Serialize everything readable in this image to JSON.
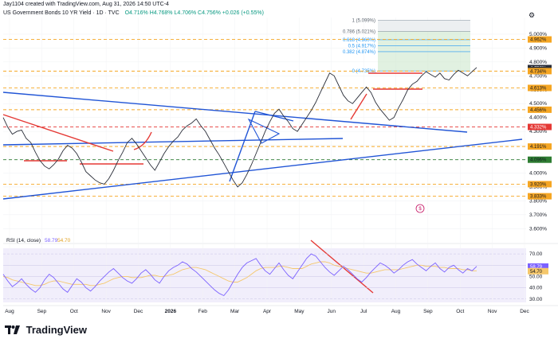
{
  "header": {
    "created_by": "Jay1104 created with TradingView.com, Aug 31, 2026 14:50 UTC-4",
    "symbol_line": "US Government Bonds 10 YR Yield · 1D · TVC",
    "ohlc": "O4.716%  H4.768%  L4.706%  C4.756%  +0.026 (+0.55%)"
  },
  "footer": {
    "brand": "TradingView",
    "brand_icon": "tradingview-logo-icon",
    "currency_icon": "currency-icon"
  },
  "colors": {
    "price_line": "#2a2e39",
    "trendline_blue": "#2155d6",
    "red": "#e53935",
    "orange_dash": "#f5a623",
    "green_dash": "#2e7d32",
    "rsi_line": "#7b61ff",
    "rsi_ma": "#f5c76b",
    "fib_green": "#c8e6c9",
    "fib_blue": "#2196f3"
  },
  "chart_data": [
    {
      "type": "line",
      "title": "US Government Bonds 10 YR Yield",
      "x_tick_labels": [
        "Aug",
        "Sep",
        "Oct",
        "Nov",
        "Dec",
        "2026",
        "Feb",
        "Mar",
        "Apr",
        "May",
        "Jun",
        "Jul",
        "Aug",
        "Sep",
        "Oct",
        "Nov",
        "Dec"
      ],
      "y_tick_labels": [
        "5.000%",
        "4.900%",
        "4.800%",
        "4.700%",
        "4.600%",
        "4.500%",
        "4.400%",
        "4.300%",
        "4.200%",
        "4.100%",
        "4.000%",
        "3.900%",
        "3.800%",
        "3.700%",
        "3.600%"
      ],
      "ylim": [
        3.55,
        5.12
      ],
      "series": [
        {
          "values": [
            4.4,
            4.33,
            4.28,
            4.3,
            4.31,
            4.25,
            4.22,
            4.15,
            4.09,
            4.05,
            4.03,
            4.06,
            4.1,
            4.16,
            4.2,
            4.18,
            4.14,
            4.08,
            4.01,
            3.98,
            3.95,
            3.93,
            3.92,
            3.96,
            4.02,
            4.09,
            4.15,
            4.22,
            4.25,
            4.21,
            4.16,
            4.11,
            4.06,
            4.02,
            4.08,
            4.14,
            4.19,
            4.23,
            4.26,
            4.31,
            4.34,
            4.36,
            4.39,
            4.34,
            4.3,
            4.24,
            4.18,
            4.13,
            4.07,
            4.01,
            3.95,
            3.9,
            3.93,
            3.99,
            4.06,
            4.14,
            4.22,
            4.3,
            4.37,
            4.43,
            4.46,
            4.41,
            4.37,
            4.32,
            4.3,
            4.35,
            4.4,
            4.45,
            4.51,
            4.58,
            4.65,
            4.72,
            4.7,
            4.63,
            4.56,
            4.52,
            4.5,
            4.54,
            4.58,
            4.62,
            4.58,
            4.51,
            4.46,
            4.42,
            4.38,
            4.4,
            4.47,
            4.53,
            4.6,
            4.64,
            4.66,
            4.7,
            4.73,
            4.71,
            4.69,
            4.72,
            4.68,
            4.67,
            4.71,
            4.74,
            4.72,
            4.7,
            4.73,
            4.76
          ]
        }
      ],
      "price_labels": [
        "4.962%",
        "4.756%",
        "02:39:04",
        "4.734%",
        "4.613%",
        "4.456%",
        "4.332%",
        "4.191%",
        "4.096%",
        "3.920%",
        "3.833%"
      ],
      "price_colors": [
        "#f5a623",
        "#2a2e39",
        "#2a2e39",
        "#f5a623",
        "#f5a623",
        "#f5a623",
        "#e53935",
        "#f5a623",
        "#2e7d32",
        "#f5a623",
        "#f5a623"
      ],
      "fib_levels": [
        {
          "label": "1 (5.099%)",
          "value": 5.099
        },
        {
          "label": "0.786 (5.021%)",
          "value": 5.021
        },
        {
          "label": "0.618 (4.960%)",
          "value": 4.96
        },
        {
          "label": "0.5 (4.917%)",
          "value": 4.917
        },
        {
          "label": "0.382 (4.874%)",
          "value": 4.874
        },
        {
          "label": "0 (4.735%)",
          "value": 4.735
        }
      ],
      "horizontal_levels": [
        {
          "value": 4.962,
          "style": "orange-dash"
        },
        {
          "value": 4.734,
          "style": "orange-dash"
        },
        {
          "value": 4.613,
          "style": "orange-dash"
        },
        {
          "value": 4.456,
          "style": "orange-dash"
        },
        {
          "value": 4.332,
          "style": "red-dash"
        },
        {
          "value": 4.191,
          "style": "orange-dash"
        },
        {
          "value": 4.096,
          "style": "green-dash"
        },
        {
          "value": 3.92,
          "style": "orange-dash"
        },
        {
          "value": 3.833,
          "style": "orange-dash"
        }
      ],
      "grid": true
    },
    {
      "type": "line",
      "title": "RSI (14, close)",
      "header_values": [
        "58.79",
        "54.70"
      ],
      "y_tick_labels": [
        "70.00",
        "60.00",
        "50.00",
        "40.00",
        "30.00"
      ],
      "ylim": [
        27,
        75
      ],
      "price_labels": [
        "58.79",
        "54.70"
      ],
      "series": [
        {
          "values": [
            52,
            46,
            41,
            44,
            48,
            43,
            39,
            36,
            40,
            47,
            52,
            49,
            44,
            39,
            36,
            42,
            48,
            45,
            40,
            37,
            41,
            46,
            50,
            54,
            57,
            53,
            49,
            46,
            44,
            48,
            53,
            56,
            52,
            47,
            44,
            50,
            55,
            58,
            60,
            63,
            61,
            57,
            54,
            50,
            46,
            42,
            38,
            35,
            33,
            38,
            45,
            52,
            58,
            62,
            64,
            66,
            60,
            55,
            52,
            57,
            62,
            56,
            51,
            48,
            54,
            60,
            66,
            70,
            68,
            63,
            58,
            54,
            51,
            55,
            59,
            56,
            52,
            48,
            45,
            49,
            54,
            58,
            62,
            60,
            57,
            53,
            56,
            60,
            63,
            65,
            61,
            58,
            55,
            59,
            62,
            57,
            54,
            58,
            60,
            56,
            53,
            57,
            55,
            59
          ]
        },
        {
          "values": [
            50,
            49,
            47,
            46,
            45,
            44,
            43,
            42,
            42,
            43,
            45,
            46,
            46,
            45,
            44,
            43,
            43,
            43,
            43,
            42,
            42,
            43,
            44,
            46,
            48,
            49,
            50,
            50,
            49,
            49,
            49,
            50,
            51,
            51,
            50,
            50,
            51,
            52,
            54,
            56,
            57,
            58,
            58,
            57,
            56,
            54,
            52,
            50,
            48,
            46,
            45,
            45,
            47,
            49,
            52,
            55,
            57,
            58,
            58,
            58,
            59,
            59,
            58,
            57,
            57,
            57,
            59,
            61,
            62,
            63,
            63,
            62,
            60,
            59,
            58,
            57,
            56,
            55,
            54,
            53,
            53,
            54,
            55,
            56,
            56,
            56,
            56,
            57,
            58,
            59,
            60,
            60,
            59,
            59,
            59,
            58,
            58,
            57,
            57,
            57,
            56,
            56,
            55,
            55
          ]
        }
      ]
    }
  ]
}
